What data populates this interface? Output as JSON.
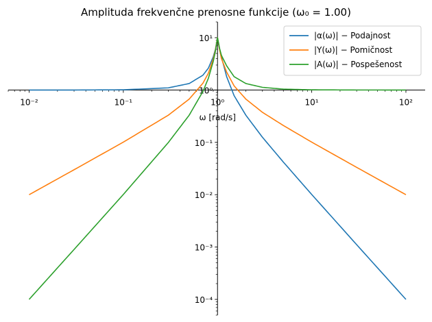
{
  "chart_data": {
    "type": "line",
    "title": "Amplituda frekvenčne prenosne funkcije (ω₀ = 1.00)",
    "xlabel": "ω [rad/s]",
    "ylabel": "",
    "xscale": "log",
    "yscale": "log",
    "xlim": [
      0.006,
      160
    ],
    "ylim": [
      5e-05,
      20
    ],
    "xticks": [
      {
        "value": 0.01,
        "label": "10⁻²"
      },
      {
        "value": 0.1,
        "label": "10⁻¹"
      },
      {
        "value": 1,
        "label": "10⁰"
      },
      {
        "value": 10,
        "label": "10¹"
      },
      {
        "value": 100,
        "label": "10²"
      }
    ],
    "yticks": [
      {
        "value": 0.0001,
        "label": "10⁻⁴"
      },
      {
        "value": 0.001,
        "label": "10⁻³"
      },
      {
        "value": 0.01,
        "label": "10⁻²"
      },
      {
        "value": 0.1,
        "label": "10⁻¹"
      },
      {
        "value": 1,
        "label": "10⁰"
      },
      {
        "value": 10,
        "label": "10¹"
      }
    ],
    "spines": "centered",
    "grid": false,
    "legend": "top-right",
    "series": [
      {
        "name": "|α(ω)| − Podajnost",
        "color": "#1f77b4",
        "x": [
          0.01,
          0.03,
          0.1,
          0.3,
          0.5,
          0.7,
          0.8,
          0.9,
          0.95,
          1,
          1.05,
          1.1,
          1.25,
          1.5,
          2,
          3,
          5,
          10,
          30,
          100
        ],
        "y": [
          1.0,
          1.0,
          1.01,
          1.1,
          1.33,
          1.92,
          2.62,
          4.3,
          6.0,
          10.0,
          6.2,
          4.3,
          1.8,
          0.78,
          0.33,
          0.125,
          0.042,
          0.0101,
          0.00111,
          0.0001
        ]
      },
      {
        "name": "|Y(ω)| − Pomičnost",
        "color": "#ff7f0e",
        "x": [
          0.01,
          0.03,
          0.1,
          0.3,
          0.5,
          0.7,
          0.8,
          0.9,
          0.95,
          1,
          1.05,
          1.1,
          1.25,
          1.5,
          2,
          3,
          5,
          10,
          30,
          100
        ],
        "y": [
          0.01,
          0.03,
          0.101,
          0.33,
          0.67,
          1.35,
          2.1,
          3.9,
          5.8,
          10.0,
          6.0,
          4.0,
          2.2,
          1.2,
          0.67,
          0.375,
          0.21,
          0.101,
          0.0333,
          0.01
        ]
      },
      {
        "name": "|A(ω)| − Pospešenost",
        "color": "#2ca02c",
        "x": [
          0.01,
          0.03,
          0.1,
          0.3,
          0.5,
          0.7,
          0.8,
          0.9,
          0.95,
          1,
          1.05,
          1.1,
          1.25,
          1.5,
          2,
          3,
          5,
          10,
          30,
          100
        ],
        "y": [
          0.0001,
          0.0009,
          0.0101,
          0.099,
          0.33,
          0.94,
          1.68,
          3.5,
          5.5,
          10.0,
          6.3,
          4.6,
          2.9,
          1.8,
          1.33,
          1.125,
          1.04,
          1.01,
          1.001,
          1.0
        ]
      }
    ]
  }
}
